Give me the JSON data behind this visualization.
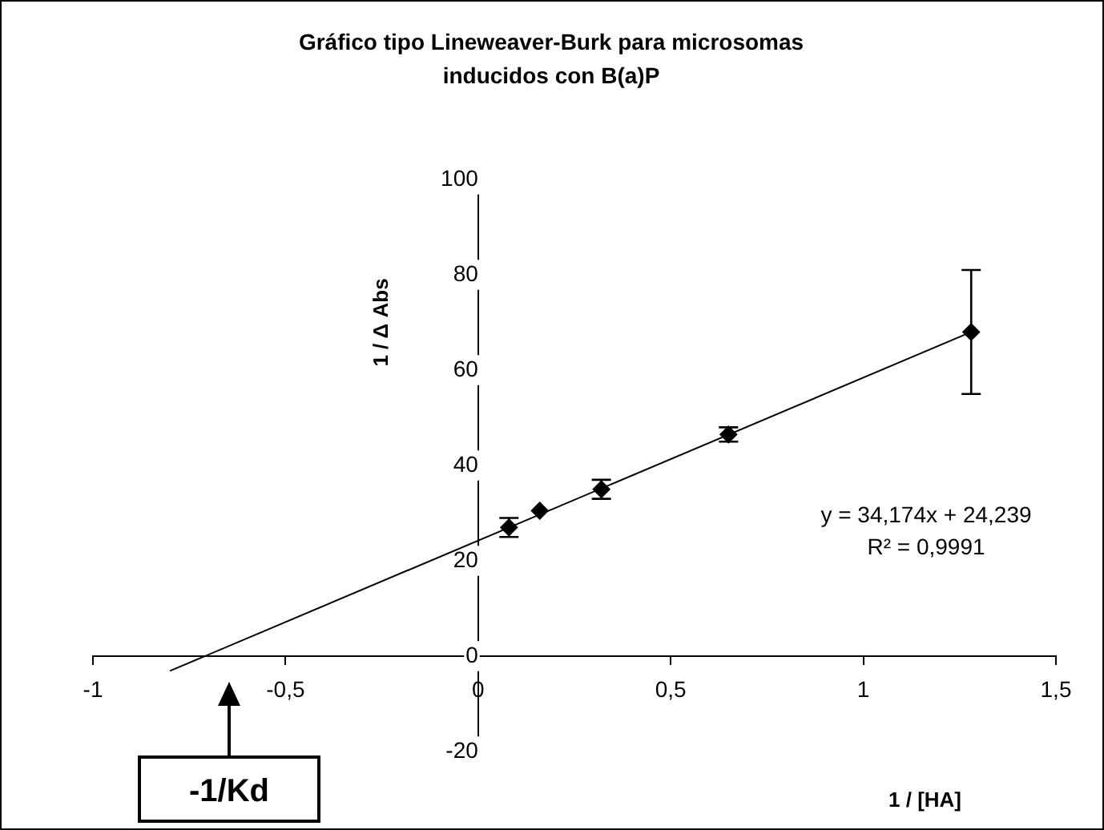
{
  "chart_data": {
    "type": "scatter",
    "title": "Gráfico tipo Lineweaver-Burk para microsomas\ninducidos con B(a)P",
    "xlabel": "1 / [HA]",
    "ylabel": "1 / Δ Abs",
    "xlim": [
      -1,
      1.5
    ],
    "xticks": [
      -1,
      {
        "value": -0.5,
        "label": "-0,5"
      },
      0,
      {
        "value": 0.5,
        "label": "0,5"
      },
      1,
      {
        "value": 1.5,
        "label": "1,5"
      }
    ],
    "ylim": [
      -20,
      100
    ],
    "yticks": [
      -20,
      0,
      20,
      40,
      60,
      80,
      100
    ],
    "series": [
      {
        "color": "#000000",
        "marker": "diamond",
        "x": [
          0.08,
          0.16,
          0.32,
          0.65,
          1.28
        ],
        "values": [
          27,
          30.5,
          35,
          46.5,
          68
        ],
        "errors": [
          2,
          null,
          2,
          1.5,
          13
        ]
      },
      {
        "type": "line",
        "color": "#000000",
        "marker": "none",
        "x": [
          -0.8,
          1.28
        ],
        "values": [
          -3.1,
          68
        ]
      }
    ],
    "annotations": [
      "y = 34,174x + 24,239",
      "R² = 0,9991",
      "-1/Kd"
    ],
    "grid": false,
    "legend": false
  }
}
